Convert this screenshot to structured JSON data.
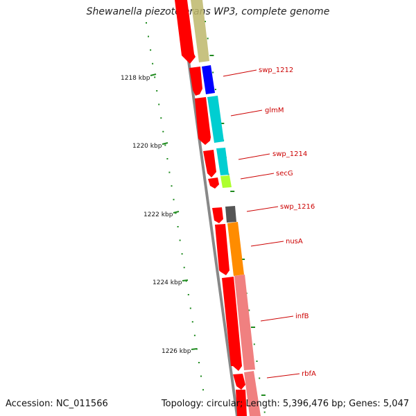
{
  "title": "Shewanella piezotolerans WP3, complete genome",
  "accession": "Accession: NC_011566",
  "topology": "Topology: circular; Length: 5,396,476 bp; Genes: 5,047",
  "scale_labels": [
    "1218 kbp",
    "1220 kbp",
    "1222 kbp",
    "1224 kbp",
    "1226 kbp"
  ],
  "gene_labels": [
    "swp_1212",
    "glmM",
    "swp_1214",
    "secG",
    "swp_1216",
    "nusA",
    "infB",
    "rbfA"
  ],
  "colors": {
    "cds_arrow": "#ff0000",
    "backbone": "#888888",
    "tick": "#1f8a1f",
    "label_text": "#cc0000",
    "features": [
      "#bdb76b",
      "#0000ff",
      "#00ced1",
      "#00ced1",
      "#adff2f",
      "#555555",
      "#ff8c00",
      "#f08080",
      "#f08080"
    ]
  }
}
